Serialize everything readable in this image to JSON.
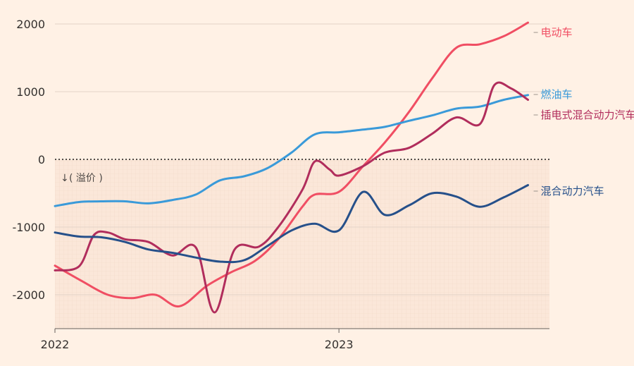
{
  "chart_data": {
    "type": "line",
    "title": "",
    "xlabel": "",
    "ylabel": "",
    "ylim": [
      -2500,
      2250
    ],
    "xlim": [
      "2022-01-01",
      "2023-09-15"
    ],
    "x_ticks": [
      {
        "date": "2022-01-01",
        "label": "2022"
      },
      {
        "date": "2023-01-01",
        "label": "2023"
      }
    ],
    "y_ticks": [
      {
        "value": 2000,
        "label": "2000"
      },
      {
        "value": 1000,
        "label": "1000"
      },
      {
        "value": 0,
        "label": "0"
      },
      {
        "value": -1000,
        "label": "-1000"
      },
      {
        "value": -2000,
        "label": "-2000"
      }
    ],
    "grid": true,
    "zero_line": "dotted",
    "shaded_region": "below zero",
    "annotation": {
      "arrow": "↓",
      "text": "(  溢价  )"
    },
    "series": [
      {
        "name": "电动车",
        "color": "#f04e63",
        "points": [
          [
            "2022-01-01",
            -1570
          ],
          [
            "2022-02-05",
            -1800
          ],
          [
            "2022-03-10",
            -2000
          ],
          [
            "2022-04-10",
            -2050
          ],
          [
            "2022-05-10",
            -2000
          ],
          [
            "2022-06-10",
            -2170
          ],
          [
            "2022-07-15",
            -1870
          ],
          [
            "2022-08-15",
            -1670
          ],
          [
            "2022-09-15",
            -1500
          ],
          [
            "2022-10-15",
            -1180
          ],
          [
            "2022-11-15",
            -700
          ],
          [
            "2022-12-01",
            -520
          ],
          [
            "2023-01-01",
            -480
          ],
          [
            "2023-02-01",
            -100
          ],
          [
            "2023-03-01",
            250
          ],
          [
            "2023-04-01",
            700
          ],
          [
            "2023-05-01",
            1200
          ],
          [
            "2023-06-01",
            1650
          ],
          [
            "2023-07-01",
            1700
          ],
          [
            "2023-08-01",
            1820
          ],
          [
            "2023-09-01",
            2020
          ]
        ]
      },
      {
        "name": "燃油车",
        "color": "#3a9ad9",
        "points": [
          [
            "2022-01-01",
            -690
          ],
          [
            "2022-02-01",
            -630
          ],
          [
            "2022-03-01",
            -620
          ],
          [
            "2022-04-01",
            -620
          ],
          [
            "2022-05-01",
            -650
          ],
          [
            "2022-06-01",
            -600
          ],
          [
            "2022-07-01",
            -520
          ],
          [
            "2022-08-01",
            -310
          ],
          [
            "2022-09-01",
            -250
          ],
          [
            "2022-10-01",
            -130
          ],
          [
            "2022-11-01",
            100
          ],
          [
            "2022-12-01",
            370
          ],
          [
            "2023-01-01",
            400
          ],
          [
            "2023-02-01",
            440
          ],
          [
            "2023-03-01",
            480
          ],
          [
            "2023-04-01",
            570
          ],
          [
            "2023-05-01",
            650
          ],
          [
            "2023-06-01",
            750
          ],
          [
            "2023-07-01",
            780
          ],
          [
            "2023-08-01",
            880
          ],
          [
            "2023-09-01",
            950
          ]
        ]
      },
      {
        "name": "插电式混合动力汽车",
        "color": "#b12d5c",
        "points": [
          [
            "2022-01-01",
            -1640
          ],
          [
            "2022-02-01",
            -1580
          ],
          [
            "2022-02-20",
            -1120
          ],
          [
            "2022-03-10",
            -1080
          ],
          [
            "2022-04-01",
            -1180
          ],
          [
            "2022-05-01",
            -1220
          ],
          [
            "2022-06-01",
            -1420
          ],
          [
            "2022-07-01",
            -1300
          ],
          [
            "2022-07-25",
            -2260
          ],
          [
            "2022-08-20",
            -1330
          ],
          [
            "2022-09-20",
            -1290
          ],
          [
            "2022-10-15",
            -1000
          ],
          [
            "2022-11-15",
            -450
          ],
          [
            "2022-12-01",
            -30
          ],
          [
            "2022-12-20",
            -150
          ],
          [
            "2023-01-01",
            -240
          ],
          [
            "2023-02-01",
            -100
          ],
          [
            "2023-03-01",
            100
          ],
          [
            "2023-04-01",
            170
          ],
          [
            "2023-05-01",
            380
          ],
          [
            "2023-06-01",
            620
          ],
          [
            "2023-07-01",
            520
          ],
          [
            "2023-07-20",
            1100
          ],
          [
            "2023-08-10",
            1050
          ],
          [
            "2023-09-01",
            880
          ]
        ]
      },
      {
        "name": "混合动力汽车",
        "color": "#26508a",
        "points": [
          [
            "2022-01-01",
            -1080
          ],
          [
            "2022-02-01",
            -1140
          ],
          [
            "2022-03-01",
            -1150
          ],
          [
            "2022-04-01",
            -1220
          ],
          [
            "2022-05-01",
            -1330
          ],
          [
            "2022-06-01",
            -1380
          ],
          [
            "2022-07-01",
            -1450
          ],
          [
            "2022-08-01",
            -1510
          ],
          [
            "2022-09-01",
            -1490
          ],
          [
            "2022-10-01",
            -1280
          ],
          [
            "2022-11-01",
            -1050
          ],
          [
            "2022-12-01",
            -950
          ],
          [
            "2023-01-01",
            -1050
          ],
          [
            "2023-02-01",
            -480
          ],
          [
            "2023-03-01",
            -820
          ],
          [
            "2023-04-01",
            -680
          ],
          [
            "2023-05-01",
            -500
          ],
          [
            "2023-06-01",
            -550
          ],
          [
            "2023-07-01",
            -700
          ],
          [
            "2023-08-01",
            -560
          ],
          [
            "2023-09-01",
            -380
          ]
        ]
      }
    ]
  }
}
